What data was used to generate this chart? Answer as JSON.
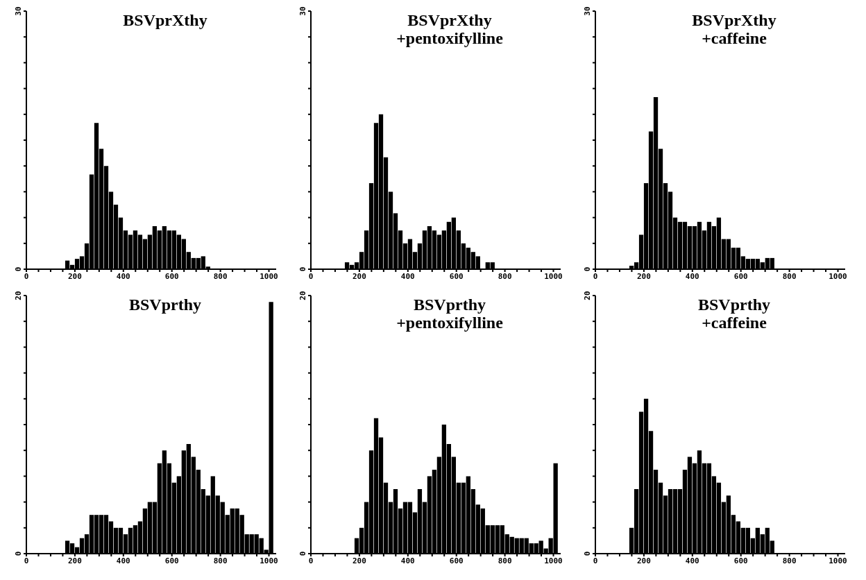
{
  "chart_data": [
    {
      "type": "histogram",
      "title": "BSVprXthy",
      "color": "#000000",
      "bins": [
        0,
        20,
        40,
        60,
        80,
        100,
        120,
        140,
        160,
        180,
        200,
        220,
        240,
        260,
        280,
        300,
        320,
        340,
        360,
        380,
        400,
        420,
        440,
        460,
        480,
        500,
        520,
        540,
        560,
        580,
        600,
        620,
        640,
        660,
        680,
        700,
        720,
        740,
        760,
        780,
        800,
        820,
        840,
        860,
        880,
        900,
        920,
        940,
        960,
        980,
        1000,
        1020
      ],
      "values": [
        0,
        0,
        0,
        0,
        0,
        0,
        0,
        0,
        1,
        0.5,
        1.2,
        1.5,
        3,
        11,
        17,
        14,
        12,
        9,
        7.5,
        6,
        4.5,
        4,
        4.5,
        4,
        3.5,
        4,
        5,
        4.5,
        5,
        4.5,
        4.5,
        4,
        3.5,
        2,
        1.3,
        1.3,
        1.5,
        0.3,
        0,
        0,
        0,
        0,
        0,
        0,
        0,
        0,
        0,
        0,
        0,
        0,
        0
      ],
      "xlim": [
        0,
        1030
      ],
      "xticks": [
        0,
        {
          "value": 50,
          "label": null
        },
        {
          "value": 100,
          "label": null
        },
        {
          "value": 150,
          "label": null
        },
        200,
        {
          "value": 250,
          "label": null
        },
        {
          "value": 300,
          "label": null
        },
        {
          "value": 350,
          "label": null
        },
        400,
        {
          "value": 450,
          "label": null
        },
        {
          "value": 500,
          "label": null
        },
        {
          "value": 550,
          "label": null
        },
        600,
        {
          "value": 650,
          "label": null
        },
        {
          "value": 700,
          "label": null
        },
        {
          "value": 750,
          "label": null
        },
        800,
        {
          "value": 850,
          "label": null
        },
        {
          "value": 900,
          "label": null
        },
        {
          "value": 950,
          "label": null
        },
        1000
      ],
      "ylim": [
        0,
        30
      ],
      "yticks": [
        0,
        {
          "value": 3,
          "label": null
        },
        {
          "value": 6,
          "label": null
        },
        {
          "value": 9,
          "label": null
        },
        {
          "value": 12,
          "label": null
        },
        {
          "value": 15,
          "label": null
        },
        {
          "value": 18,
          "label": null
        },
        {
          "value": 21,
          "label": null
        },
        {
          "value": 24,
          "label": null
        },
        {
          "value": 27,
          "label": null
        },
        30
      ]
    },
    {
      "type": "histogram",
      "title": "BSVprXthy",
      "subtitle": "+pentoxifylline",
      "color": "#000000",
      "bins": [
        0,
        20,
        40,
        60,
        80,
        100,
        120,
        140,
        160,
        180,
        200,
        220,
        240,
        260,
        280,
        300,
        320,
        340,
        360,
        380,
        400,
        420,
        440,
        460,
        480,
        500,
        520,
        540,
        560,
        580,
        600,
        620,
        640,
        660,
        680,
        700,
        720,
        740,
        760,
        780,
        800,
        820,
        840,
        860,
        880,
        900,
        920,
        940,
        960,
        980,
        1000,
        1020
      ],
      "values": [
        0,
        0,
        0,
        0,
        0,
        0,
        0,
        0.8,
        0.5,
        0.8,
        2,
        4.5,
        10,
        17,
        18,
        13,
        9,
        6.5,
        4.5,
        3,
        3.5,
        2,
        3,
        4.5,
        5,
        4.5,
        4,
        4.5,
        5.5,
        6,
        4.5,
        3,
        2.5,
        2,
        1.5,
        0,
        0.8,
        0.8,
        0,
        0,
        0,
        0,
        0,
        0,
        0,
        0,
        0,
        0,
        0,
        0,
        0
      ],
      "xlim": [
        0,
        1030
      ],
      "xticks": [
        0,
        {
          "value": 50,
          "label": null
        },
        {
          "value": 100,
          "label": null
        },
        {
          "value": 150,
          "label": null
        },
        200,
        {
          "value": 250,
          "label": null
        },
        {
          "value": 300,
          "label": null
        },
        {
          "value": 350,
          "label": null
        },
        400,
        {
          "value": 450,
          "label": null
        },
        {
          "value": 500,
          "label": null
        },
        {
          "value": 550,
          "label": null
        },
        600,
        {
          "value": 650,
          "label": null
        },
        {
          "value": 700,
          "label": null
        },
        {
          "value": 750,
          "label": null
        },
        800,
        {
          "value": 850,
          "label": null
        },
        {
          "value": 900,
          "label": null
        },
        {
          "value": 950,
          "label": null
        },
        1000
      ],
      "ylim": [
        0,
        30
      ],
      "yticks": [
        0,
        {
          "value": 3,
          "label": null
        },
        {
          "value": 6,
          "label": null
        },
        {
          "value": 9,
          "label": null
        },
        {
          "value": 12,
          "label": null
        },
        {
          "value": 15,
          "label": null
        },
        {
          "value": 18,
          "label": null
        },
        {
          "value": 21,
          "label": null
        },
        {
          "value": 24,
          "label": null
        },
        {
          "value": 27,
          "label": null
        },
        30
      ]
    },
    {
      "type": "histogram",
      "title": "BSVprXthy",
      "subtitle": "+caffeine",
      "color": "#000000",
      "bins": [
        0,
        20,
        40,
        60,
        80,
        100,
        120,
        140,
        160,
        180,
        200,
        220,
        240,
        260,
        280,
        300,
        320,
        340,
        360,
        380,
        400,
        420,
        440,
        460,
        480,
        500,
        520,
        540,
        560,
        580,
        600,
        620,
        640,
        660,
        680,
        700,
        720,
        740,
        760,
        780,
        800,
        820,
        840,
        860,
        880,
        900,
        920,
        940,
        960,
        980,
        1000,
        1020
      ],
      "values": [
        0,
        0,
        0,
        0,
        0,
        0,
        0,
        0.4,
        0.8,
        4,
        10,
        16,
        20,
        14,
        10,
        9,
        6,
        5.5,
        5.5,
        5,
        5,
        5.5,
        4.5,
        5.5,
        5,
        6,
        3.5,
        3.5,
        2.5,
        2.5,
        1.5,
        1.2,
        1.2,
        1.2,
        0.8,
        1.3,
        1.3,
        0,
        0,
        0,
        0,
        0,
        0,
        0,
        0,
        0,
        0,
        0,
        0,
        0,
        0
      ],
      "xlim": [
        0,
        1030
      ],
      "xticks": [
        0,
        {
          "value": 50,
          "label": null
        },
        {
          "value": 100,
          "label": null
        },
        {
          "value": 150,
          "label": null
        },
        200,
        {
          "value": 250,
          "label": null
        },
        {
          "value": 300,
          "label": null
        },
        {
          "value": 350,
          "label": null
        },
        400,
        {
          "value": 450,
          "label": null
        },
        {
          "value": 500,
          "label": null
        },
        {
          "value": 550,
          "label": null
        },
        600,
        {
          "value": 650,
          "label": null
        },
        {
          "value": 700,
          "label": null
        },
        {
          "value": 750,
          "label": null
        },
        800,
        {
          "value": 850,
          "label": null
        },
        {
          "value": 900,
          "label": null
        },
        {
          "value": 950,
          "label": null
        },
        1000
      ],
      "ylim": [
        0,
        30
      ],
      "yticks": [
        0,
        {
          "value": 3,
          "label": null
        },
        {
          "value": 6,
          "label": null
        },
        {
          "value": 9,
          "label": null
        },
        {
          "value": 12,
          "label": null
        },
        {
          "value": 15,
          "label": null
        },
        {
          "value": 18,
          "label": null
        },
        {
          "value": 21,
          "label": null
        },
        {
          "value": 24,
          "label": null
        },
        {
          "value": 27,
          "label": null
        },
        30
      ]
    },
    {
      "type": "histogram",
      "title": "BSVprthy",
      "color": "#000000",
      "bins": [
        0,
        20,
        40,
        60,
        80,
        100,
        120,
        140,
        160,
        180,
        200,
        220,
        240,
        260,
        280,
        300,
        320,
        340,
        360,
        380,
        400,
        420,
        440,
        460,
        480,
        500,
        520,
        540,
        560,
        580,
        600,
        620,
        640,
        660,
        680,
        700,
        720,
        740,
        760,
        780,
        800,
        820,
        840,
        860,
        880,
        900,
        920,
        940,
        960,
        980,
        1000,
        1020
      ],
      "values": [
        0,
        0,
        0,
        0,
        0,
        0,
        0,
        0,
        1,
        0.8,
        0.5,
        1.2,
        1.5,
        3,
        3,
        3,
        3,
        2.5,
        2,
        2,
        1.5,
        2,
        2.2,
        2.5,
        3.5,
        4,
        4,
        7,
        8,
        7,
        5.5,
        6,
        8,
        8.5,
        7.5,
        6.5,
        5,
        4.5,
        6,
        4.5,
        4,
        3,
        3.5,
        3.5,
        3,
        1.5,
        1.5,
        1.5,
        1.2,
        0.3,
        19.5
      ],
      "xlim": [
        0,
        1030
      ],
      "xticks": [
        0,
        {
          "value": 50,
          "label": null
        },
        {
          "value": 100,
          "label": null
        },
        {
          "value": 150,
          "label": null
        },
        200,
        {
          "value": 250,
          "label": null
        },
        {
          "value": 300,
          "label": null
        },
        {
          "value": 350,
          "label": null
        },
        400,
        {
          "value": 450,
          "label": null
        },
        {
          "value": 500,
          "label": null
        },
        {
          "value": 550,
          "label": null
        },
        600,
        {
          "value": 650,
          "label": null
        },
        {
          "value": 700,
          "label": null
        },
        {
          "value": 750,
          "label": null
        },
        800,
        {
          "value": 850,
          "label": null
        },
        {
          "value": 900,
          "label": null
        },
        {
          "value": 950,
          "label": null
        },
        1000
      ],
      "ylim": [
        0,
        20
      ],
      "yticks": [
        0,
        {
          "value": 2,
          "label": null
        },
        {
          "value": 4,
          "label": null
        },
        {
          "value": 6,
          "label": null
        },
        {
          "value": 8,
          "label": null
        },
        {
          "value": 10,
          "label": null
        },
        {
          "value": 12,
          "label": null
        },
        {
          "value": 14,
          "label": null
        },
        {
          "value": 16,
          "label": null
        },
        {
          "value": 18,
          "label": null
        },
        20
      ]
    },
    {
      "type": "histogram",
      "title": "BSVprthy",
      "subtitle": "+pentoxifylline",
      "color": "#000000",
      "bins": [
        0,
        20,
        40,
        60,
        80,
        100,
        120,
        140,
        160,
        180,
        200,
        220,
        240,
        260,
        280,
        300,
        320,
        340,
        360,
        380,
        400,
        420,
        440,
        460,
        480,
        500,
        520,
        540,
        560,
        580,
        600,
        620,
        640,
        660,
        680,
        700,
        720,
        740,
        760,
        780,
        800,
        820,
        840,
        860,
        880,
        900,
        920,
        940,
        960,
        980,
        1000,
        1020
      ],
      "values": [
        0,
        0,
        0,
        0,
        0,
        0,
        0,
        0,
        0,
        1.2,
        2,
        4,
        8,
        10.5,
        9,
        5.5,
        4,
        5,
        3.5,
        4,
        4,
        3.2,
        5,
        4,
        6,
        6.5,
        7.5,
        10,
        8.5,
        7.5,
        5.5,
        5.5,
        6,
        5,
        3.8,
        3.5,
        2.2,
        2.2,
        2.2,
        2.2,
        1.5,
        1.3,
        1.2,
        1.2,
        1.2,
        0.8,
        0.8,
        1,
        0.4,
        1.2,
        7
      ],
      "xlim": [
        0,
        1030
      ],
      "xticks": [
        0,
        {
          "value": 50,
          "label": null
        },
        {
          "value": 100,
          "label": null
        },
        {
          "value": 150,
          "label": null
        },
        200,
        {
          "value": 250,
          "label": null
        },
        {
          "value": 300,
          "label": null
        },
        {
          "value": 350,
          "label": null
        },
        400,
        {
          "value": 450,
          "label": null
        },
        {
          "value": 500,
          "label": null
        },
        {
          "value": 550,
          "label": null
        },
        600,
        {
          "value": 650,
          "label": null
        },
        {
          "value": 700,
          "label": null
        },
        {
          "value": 750,
          "label": null
        },
        800,
        {
          "value": 850,
          "label": null
        },
        {
          "value": 900,
          "label": null
        },
        {
          "value": 950,
          "label": null
        },
        1000
      ],
      "ylim": [
        0,
        20
      ],
      "yticks": [
        0,
        {
          "value": 2,
          "label": null
        },
        {
          "value": 4,
          "label": null
        },
        {
          "value": 6,
          "label": null
        },
        {
          "value": 8,
          "label": null
        },
        {
          "value": 10,
          "label": null
        },
        {
          "value": 12,
          "label": null
        },
        {
          "value": 14,
          "label": null
        },
        {
          "value": 16,
          "label": null
        },
        {
          "value": 18,
          "label": null
        },
        20
      ]
    },
    {
      "type": "histogram",
      "title": "BSVprthy",
      "subtitle": "+caffeine",
      "color": "#000000",
      "bins": [
        0,
        20,
        40,
        60,
        80,
        100,
        120,
        140,
        160,
        180,
        200,
        220,
        240,
        260,
        280,
        300,
        320,
        340,
        360,
        380,
        400,
        420,
        440,
        460,
        480,
        500,
        520,
        540,
        560,
        580,
        600,
        620,
        640,
        660,
        680,
        700,
        720,
        740,
        760,
        780,
        800,
        820,
        840,
        860,
        880,
        900,
        920,
        940,
        960,
        980,
        1000,
        1020
      ],
      "values": [
        0,
        0,
        0,
        0,
        0,
        0,
        0,
        2,
        5,
        11,
        12,
        9.5,
        6.5,
        5.5,
        4.5,
        5,
        5,
        5,
        6.5,
        7.5,
        7,
        8,
        7,
        7,
        6,
        5.5,
        4,
        4.5,
        3,
        2.5,
        2,
        2,
        1.2,
        2,
        1.5,
        2,
        1,
        0,
        0,
        0,
        0,
        0,
        0,
        0,
        0,
        0,
        0,
        0,
        0,
        0,
        0
      ],
      "xlim": [
        0,
        1030
      ],
      "xticks": [
        0,
        {
          "value": 50,
          "label": null
        },
        {
          "value": 100,
          "label": null
        },
        {
          "value": 150,
          "label": null
        },
        200,
        {
          "value": 250,
          "label": null
        },
        {
          "value": 300,
          "label": null
        },
        {
          "value": 350,
          "label": null
        },
        400,
        {
          "value": 450,
          "label": null
        },
        {
          "value": 500,
          "label": null
        },
        {
          "value": 550,
          "label": null
        },
        600,
        {
          "value": 650,
          "label": null
        },
        {
          "value": 700,
          "label": null
        },
        {
          "value": 750,
          "label": null
        },
        800,
        {
          "value": 850,
          "label": null
        },
        {
          "value": 900,
          "label": null
        },
        {
          "value": 950,
          "label": null
        },
        1000
      ],
      "ylim": [
        0,
        20
      ],
      "yticks": [
        0,
        {
          "value": 2,
          "label": null
        },
        {
          "value": 4,
          "label": null
        },
        {
          "value": 6,
          "label": null
        },
        {
          "value": 8,
          "label": null
        },
        {
          "value": 10,
          "label": null
        },
        {
          "value": 12,
          "label": null
        },
        {
          "value": 14,
          "label": null
        },
        {
          "value": 16,
          "label": null
        },
        {
          "value": 18,
          "label": null
        },
        20
      ]
    }
  ]
}
